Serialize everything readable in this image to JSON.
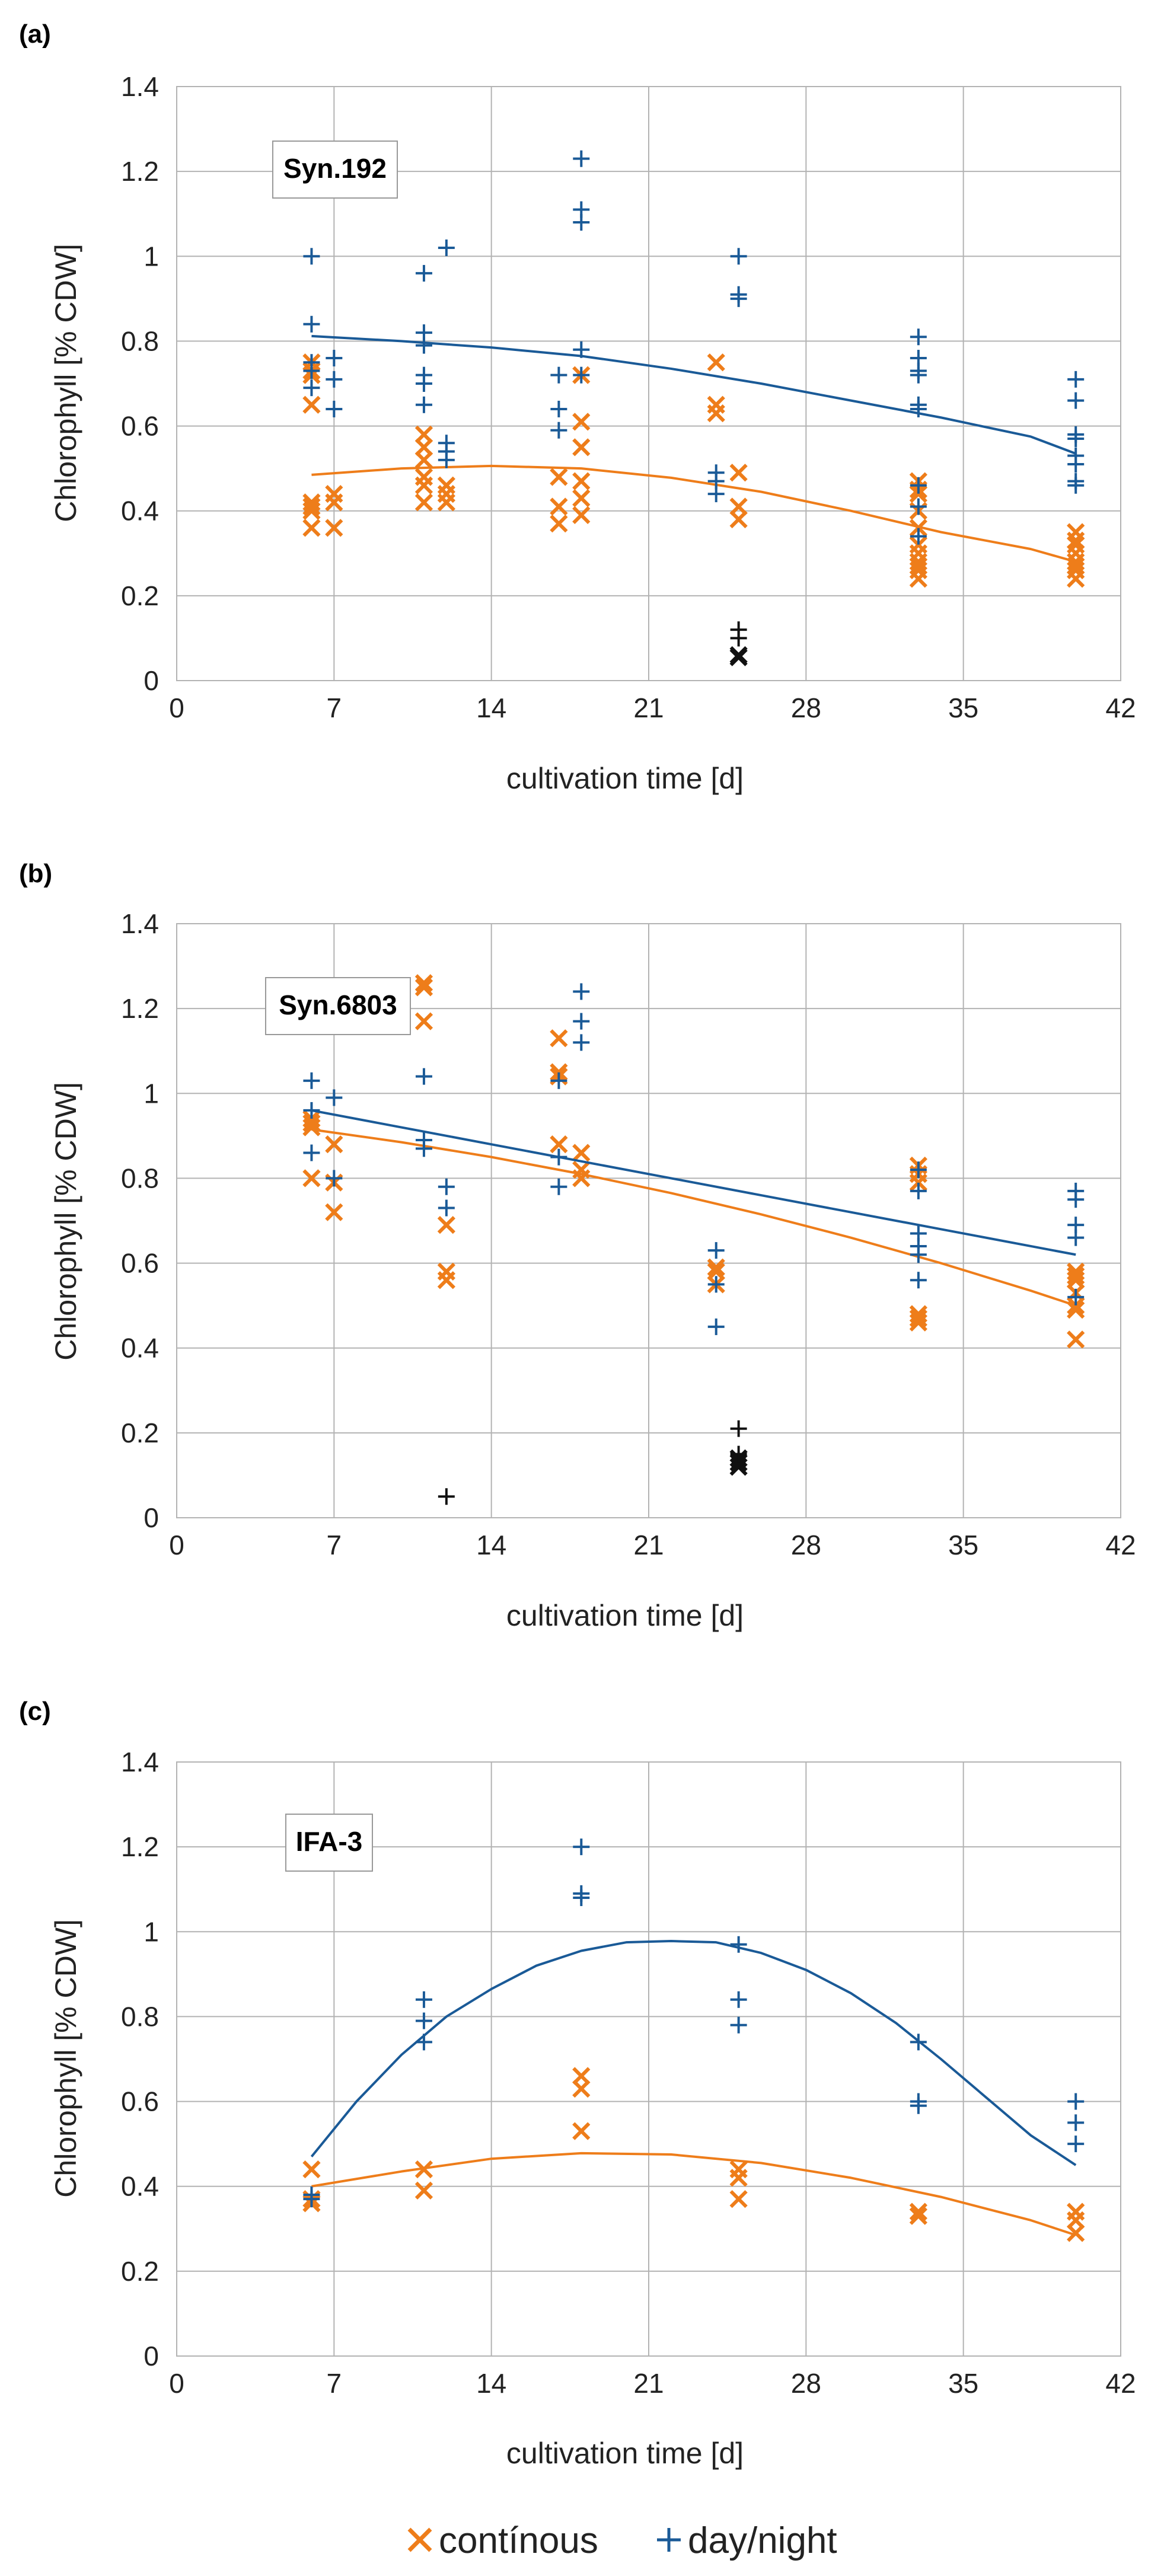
{
  "legend": {
    "continuous_label": "contínous",
    "daynight_label": "day/night"
  },
  "colors": {
    "continuous": "#ee7d1a",
    "daynight": "#1a5a97",
    "outlier": "#111111",
    "grid": "#b3b3b3"
  },
  "chart_data": [
    {
      "type": "scatter",
      "panel": "(a)",
      "strain": "Syn.192",
      "xlabel": "cultivation time [d]",
      "ylabel": "Chlorophyll [% CDW]",
      "xlim": [
        0,
        42
      ],
      "ylim": [
        0,
        1.4
      ],
      "xticks": [
        "0",
        "7",
        "14",
        "21",
        "28",
        "35",
        "42"
      ],
      "yticks": [
        "0",
        "0.2",
        "0.4",
        "0.6",
        "0.8",
        "1",
        "1.2",
        "1.4"
      ],
      "series": [
        {
          "name": "continuous",
          "marker": "x",
          "points": [
            [
              6,
              0.75
            ],
            [
              6,
              0.73
            ],
            [
              6,
              0.72
            ],
            [
              6,
              0.65
            ],
            [
              6,
              0.42
            ],
            [
              6,
              0.41
            ],
            [
              6,
              0.4
            ],
            [
              6,
              0.36
            ],
            [
              7,
              0.44
            ],
            [
              7,
              0.42
            ],
            [
              7,
              0.36
            ],
            [
              11,
              0.58
            ],
            [
              11,
              0.55
            ],
            [
              11,
              0.52
            ],
            [
              11,
              0.48
            ],
            [
              11,
              0.46
            ],
            [
              11,
              0.42
            ],
            [
              12,
              0.46
            ],
            [
              12,
              0.44
            ],
            [
              12,
              0.42
            ],
            [
              17,
              0.48
            ],
            [
              17,
              0.41
            ],
            [
              17,
              0.37
            ],
            [
              18,
              0.72
            ],
            [
              18,
              0.61
            ],
            [
              18,
              0.55
            ],
            [
              18,
              0.47
            ],
            [
              18,
              0.43
            ],
            [
              18,
              0.39
            ],
            [
              24,
              0.75
            ],
            [
              24,
              0.65
            ],
            [
              24,
              0.63
            ],
            [
              25,
              0.49
            ],
            [
              25,
              0.41
            ],
            [
              25,
              0.38
            ],
            [
              33,
              0.47
            ],
            [
              33,
              0.45
            ],
            [
              33,
              0.44
            ],
            [
              33,
              0.4
            ],
            [
              33,
              0.36
            ],
            [
              33,
              0.32
            ],
            [
              33,
              0.3
            ],
            [
              33,
              0.28
            ],
            [
              33,
              0.27
            ],
            [
              33,
              0.26
            ],
            [
              33,
              0.24
            ],
            [
              40,
              0.35
            ],
            [
              40,
              0.33
            ],
            [
              40,
              0.32
            ],
            [
              40,
              0.3
            ],
            [
              40,
              0.28
            ],
            [
              40,
              0.27
            ],
            [
              40,
              0.26
            ],
            [
              40,
              0.24
            ]
          ],
          "trend_x": [
            6,
            10,
            14,
            18,
            22,
            26,
            30,
            34,
            38,
            40
          ],
          "trend_y": [
            0.485,
            0.5,
            0.506,
            0.5,
            0.478,
            0.445,
            0.4,
            0.35,
            0.31,
            0.28
          ]
        },
        {
          "name": "day/night",
          "marker": "+",
          "points": [
            [
              6,
              1.0
            ],
            [
              6,
              0.84
            ],
            [
              6,
              0.75
            ],
            [
              6,
              0.73
            ],
            [
              6,
              0.69
            ],
            [
              7,
              0.76
            ],
            [
              7,
              0.71
            ],
            [
              7,
              0.64
            ],
            [
              11,
              0.96
            ],
            [
              11,
              0.82
            ],
            [
              11,
              0.79
            ],
            [
              11,
              0.72
            ],
            [
              11,
              0.7
            ],
            [
              11,
              0.65
            ],
            [
              12,
              1.02
            ],
            [
              12,
              0.56
            ],
            [
              12,
              0.54
            ],
            [
              12,
              0.52
            ],
            [
              17,
              0.72
            ],
            [
              17,
              0.64
            ],
            [
              17,
              0.59
            ],
            [
              18,
              1.23
            ],
            [
              18,
              1.11
            ],
            [
              18,
              1.08
            ],
            [
              18,
              0.78
            ],
            [
              18,
              0.72
            ],
            [
              24,
              0.49
            ],
            [
              24,
              0.47
            ],
            [
              24,
              0.44
            ],
            [
              25,
              1.0
            ],
            [
              25,
              0.91
            ],
            [
              25,
              0.9
            ],
            [
              33,
              0.81
            ],
            [
              33,
              0.76
            ],
            [
              33,
              0.73
            ],
            [
              33,
              0.72
            ],
            [
              33,
              0.65
            ],
            [
              33,
              0.64
            ],
            [
              33,
              0.46
            ],
            [
              33,
              0.41
            ],
            [
              33,
              0.34
            ],
            [
              40,
              0.71
            ],
            [
              40,
              0.66
            ],
            [
              40,
              0.58
            ],
            [
              40,
              0.57
            ],
            [
              40,
              0.53
            ],
            [
              40,
              0.51
            ],
            [
              40,
              0.47
            ],
            [
              40,
              0.46
            ]
          ],
          "trend_x": [
            6,
            10,
            14,
            18,
            22,
            26,
            30,
            34,
            38,
            40
          ],
          "trend_y": [
            0.812,
            0.8,
            0.785,
            0.765,
            0.735,
            0.7,
            0.66,
            0.62,
            0.575,
            0.535
          ]
        },
        {
          "name": "outliers",
          "marker": "x",
          "points": [
            [
              25,
              0.06
            ],
            [
              25,
              0.055
            ]
          ]
        },
        {
          "name": "outliers-plus",
          "marker": "+",
          "points": [
            [
              25,
              0.12
            ],
            [
              25,
              0.1
            ]
          ]
        }
      ]
    },
    {
      "type": "scatter",
      "panel": "(b)",
      "strain": "Syn.6803",
      "xlabel": "cultivation time [d]",
      "ylabel": "Chlorophyll [% CDW]",
      "xlim": [
        0,
        42
      ],
      "ylim": [
        0,
        1.4
      ],
      "xticks": [
        "0",
        "7",
        "14",
        "21",
        "28",
        "35",
        "42"
      ],
      "yticks": [
        "0",
        "0.2",
        "0.4",
        "0.6",
        "0.8",
        "1",
        "1.2",
        "1.4"
      ],
      "series": [
        {
          "name": "continuous",
          "marker": "x",
          "points": [
            [
              6,
              0.94
            ],
            [
              6,
              0.93
            ],
            [
              6,
              0.92
            ],
            [
              6,
              0.8
            ],
            [
              7,
              0.88
            ],
            [
              7,
              0.79
            ],
            [
              7,
              0.72
            ],
            [
              11,
              1.26
            ],
            [
              11,
              1.25
            ],
            [
              11,
              1.17
            ],
            [
              12,
              0.69
            ],
            [
              12,
              0.58
            ],
            [
              12,
              0.56
            ],
            [
              17,
              1.13
            ],
            [
              17,
              1.05
            ],
            [
              17,
              1.04
            ],
            [
              17,
              0.88
            ],
            [
              18,
              0.86
            ],
            [
              18,
              0.82
            ],
            [
              18,
              0.8
            ],
            [
              24,
              0.59
            ],
            [
              24,
              0.58
            ],
            [
              24,
              0.55
            ],
            [
              33,
              0.83
            ],
            [
              33,
              0.81
            ],
            [
              33,
              0.79
            ],
            [
              33,
              0.48
            ],
            [
              33,
              0.47
            ],
            [
              33,
              0.46
            ],
            [
              40,
              0.58
            ],
            [
              40,
              0.57
            ],
            [
              40,
              0.56
            ],
            [
              40,
              0.53
            ],
            [
              40,
              0.5
            ],
            [
              40,
              0.49
            ],
            [
              40,
              0.42
            ]
          ],
          "trend_x": [
            6,
            10,
            14,
            18,
            22,
            26,
            30,
            34,
            38,
            40
          ],
          "trend_y": [
            0.915,
            0.885,
            0.85,
            0.81,
            0.765,
            0.715,
            0.66,
            0.6,
            0.535,
            0.5
          ]
        },
        {
          "name": "day/night",
          "marker": "+",
          "points": [
            [
              6,
              1.03
            ],
            [
              6,
              0.96
            ],
            [
              6,
              0.86
            ],
            [
              7,
              0.99
            ],
            [
              7,
              0.8
            ],
            [
              11,
              1.04
            ],
            [
              11,
              0.89
            ],
            [
              11,
              0.87
            ],
            [
              12,
              0.78
            ],
            [
              12,
              0.73
            ],
            [
              17,
              1.03
            ],
            [
              17,
              0.85
            ],
            [
              17,
              0.78
            ],
            [
              18,
              1.24
            ],
            [
              18,
              1.17
            ],
            [
              18,
              1.12
            ],
            [
              24,
              0.63
            ],
            [
              24,
              0.55
            ],
            [
              24,
              0.45
            ],
            [
              33,
              0.82
            ],
            [
              33,
              0.77
            ],
            [
              33,
              0.67
            ],
            [
              33,
              0.64
            ],
            [
              33,
              0.62
            ],
            [
              33,
              0.56
            ],
            [
              40,
              0.77
            ],
            [
              40,
              0.75
            ],
            [
              40,
              0.69
            ],
            [
              40,
              0.66
            ],
            [
              40,
              0.52
            ]
          ],
          "trend_x": [
            6,
            10,
            14,
            18,
            22,
            26,
            30,
            34,
            38,
            40
          ],
          "trend_y": [
            0.96,
            0.92,
            0.88,
            0.84,
            0.8,
            0.76,
            0.72,
            0.68,
            0.64,
            0.62
          ]
        },
        {
          "name": "outliers",
          "marker": "x",
          "points": [
            [
              25,
              0.14
            ],
            [
              25,
              0.13
            ],
            [
              25,
              0.12
            ]
          ]
        },
        {
          "name": "outliers-plus",
          "marker": "+",
          "points": [
            [
              25,
              0.21
            ],
            [
              25,
              0.15
            ],
            [
              12,
              0.05
            ]
          ]
        }
      ]
    },
    {
      "type": "scatter",
      "panel": "(c)",
      "strain": "IFA-3",
      "xlabel": "cultivation time [d]",
      "ylabel": "Chlorophyll [% CDW]",
      "xlim": [
        0,
        42
      ],
      "ylim": [
        0,
        1.4
      ],
      "xticks": [
        "0",
        "7",
        "14",
        "21",
        "28",
        "35",
        "42"
      ],
      "yticks": [
        "0",
        "0.2",
        "0.4",
        "0.6",
        "0.8",
        "1",
        "1.2",
        "1.4"
      ],
      "series": [
        {
          "name": "continuous",
          "marker": "x",
          "points": [
            [
              6,
              0.44
            ],
            [
              6,
              0.37
            ],
            [
              6,
              0.36
            ],
            [
              11,
              0.44
            ],
            [
              11,
              0.39
            ],
            [
              18,
              0.66
            ],
            [
              18,
              0.63
            ],
            [
              18,
              0.53
            ],
            [
              25,
              0.44
            ],
            [
              25,
              0.42
            ],
            [
              25,
              0.37
            ],
            [
              33,
              0.34
            ],
            [
              33,
              0.33
            ],
            [
              40,
              0.34
            ],
            [
              40,
              0.32
            ],
            [
              40,
              0.29
            ]
          ],
          "trend_x": [
            6,
            10,
            14,
            18,
            22,
            26,
            30,
            34,
            38,
            40
          ],
          "trend_y": [
            0.4,
            0.435,
            0.465,
            0.478,
            0.475,
            0.455,
            0.42,
            0.375,
            0.32,
            0.285
          ]
        },
        {
          "name": "day/night",
          "marker": "+",
          "points": [
            [
              6,
              0.38
            ],
            [
              6,
              0.37
            ],
            [
              11,
              0.84
            ],
            [
              11,
              0.79
            ],
            [
              11,
              0.74
            ],
            [
              18,
              1.2
            ],
            [
              18,
              1.09
            ],
            [
              18,
              1.08
            ],
            [
              25,
              0.97
            ],
            [
              25,
              0.84
            ],
            [
              25,
              0.78
            ],
            [
              33,
              0.74
            ],
            [
              33,
              0.6
            ],
            [
              33,
              0.59
            ],
            [
              40,
              0.6
            ],
            [
              40,
              0.55
            ],
            [
              40,
              0.5
            ]
          ],
          "trend_x": [
            6,
            8,
            10,
            12,
            14,
            16,
            18,
            20,
            22,
            24,
            26,
            28,
            30,
            32,
            34,
            36,
            38,
            40
          ],
          "trend_y": [
            0.47,
            0.6,
            0.71,
            0.8,
            0.865,
            0.92,
            0.955,
            0.975,
            0.978,
            0.975,
            0.95,
            0.91,
            0.855,
            0.785,
            0.7,
            0.61,
            0.52,
            0.45
          ]
        }
      ]
    }
  ]
}
